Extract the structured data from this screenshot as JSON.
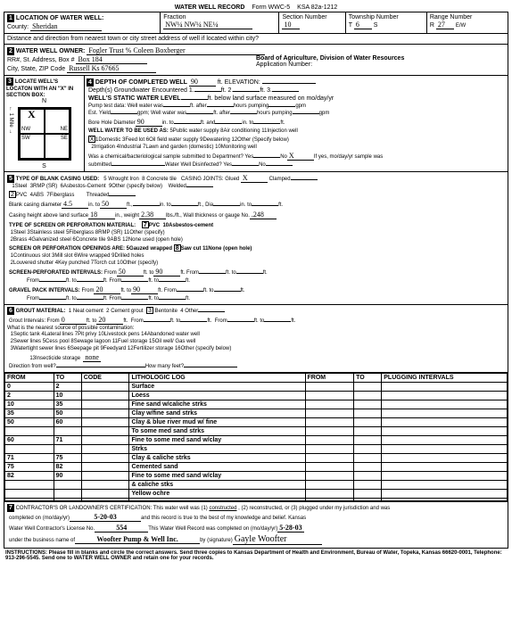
{
  "form": {
    "title": "WATER WELL RECORD",
    "form_no": "Form WWC-5",
    "ksa": "KSA 82a-1212"
  },
  "s1": {
    "label": "LOCATION OF WATER WELL:",
    "county_label": "County:",
    "county": "Sheridan",
    "fraction_label": "Fraction",
    "fraction": "NW¼   NW¼   NE¼",
    "section_label": "Section Number",
    "section": "10",
    "township_label": "Township Number",
    "township_t": "T",
    "township": "6",
    "township_s": "S",
    "range_label": "Range Number",
    "range_r": "R",
    "range": "27",
    "range_dir": "E/W",
    "distance": "Distance and direction from nearest town or city street address of well if located within city?"
  },
  "s2": {
    "label": "WATER WELL OWNER:",
    "owner": "Fogler Trust % Coleen Boxberger",
    "rr_label": "RR#, St. Address, Box #",
    "addr": "Box 184",
    "city_label": "City, State, ZIP Code",
    "city": "Russell Ks  67665",
    "board": "Board of Agriculture, Division of Water Resources",
    "appno": "Application Number:"
  },
  "s3": {
    "label": "LOCATE WELL'S LOCATON WITH AN \"X\" IN SECTION BOX:"
  },
  "s4": {
    "depth_label": "DEPTH OF COMPLETED WELL",
    "depth": "90",
    "elev_label": "ft. ELEVATION:",
    "gw_label": "Depth(s) Groundwater Encountered",
    "gw1": "1.",
    "gw2": "ft. 2.",
    "gw3": "ft. 3.",
    "static_label": "WELL'S STATIC WATER LEVEL",
    "static_suffix": "ft. below land surface measured on mo/day/yr",
    "pump_label": "Pump test data:",
    "well_water": "Well water was",
    "after1": "ft. after",
    "hours1": "hours pumping",
    "gpm1": "gpm",
    "yield_label": "Est. Yield",
    "gpm_lbl": "gpm;",
    "bore_label": "Bore Hole Diameter",
    "bore": "90",
    "in_lbl": "in. to",
    "ft_and": "ft. and",
    "in_to2": "in. to",
    "ft_end": "ft.",
    "use_label": "WELL WATER TO BE USED AS:",
    "u1": "Domestic",
    "u1v": "X",
    "u2": "Irrigation",
    "u3": "Feed lot",
    "u4": "Industrial",
    "u5": "Public water supply",
    "u6": "Oil field water supply",
    "u7": "Lawn and garden (domestic)",
    "u8": "Air conditioning",
    "u9": "Dewatering",
    "u10": "Monitoring well",
    "u11": "Injection well",
    "u12": "Other (Specify below)",
    "chem": "Was a chemical/bacteriological sample submitted to Department? Yes",
    "no_lbl": "No",
    "x1": "X",
    "ifyes": "If yes, mo/day/yr sample was",
    "submitted": "submitted",
    "disinf": "Water Well Disinfected? Yes",
    "no2": "No"
  },
  "s5": {
    "label": "TYPE OF BLANK CASING USED:",
    "c1": "Steel",
    "c2": "PVC",
    "c2v": "2",
    "c3": "RMP (SR)",
    "c4": "ABS",
    "c5": "Wrought Iron",
    "c6": "Asbestos-Cement",
    "c7": "Fiberglass",
    "c8": "Concrete tile",
    "c9": "Other (specify below)",
    "joints": "CASING JOINTS: Glued",
    "jx": "X",
    "clamped": "Clamped",
    "welded": "Welded",
    "threaded": "Threaded",
    "blank_dia": "Blank casing diameter",
    "bd1": "4.5",
    "bd2": "50",
    "bd3": "",
    "height": "Casing height above land surface",
    "h1": "18",
    "weight": "in., weight",
    "w1": "2.38",
    "wall": "lbs./ft., Wall thickness or gauge No.",
    "wn": ".248",
    "screen_label": "TYPE OF SCREEN OR PERFORATION MATERIAL:",
    "sc7": "PVC",
    "sc7v": "7",
    "s1": "Steel",
    "s2": "Brass",
    "s3": "Stainless steel",
    "s4": "Galvanized steel",
    "s5": "Fiberglass",
    "s6": "Concrete tile",
    "s8": "RMP (SR)",
    "s9": "ABS",
    "s10": "Asbestos-cement",
    "s11": "Other (specify)",
    "s12": "None used (open hole)",
    "open_label": "SCREEN OR PERFORATION OPENINGS ARE:",
    "o1": "Continuous slot",
    "o2": "Louvered shutter",
    "o3": "Mill slot",
    "o4": "Key punched",
    "o5": "Gauzed wrapped",
    "o6": "Wire wrapped",
    "o7": "Torch cut",
    "o8": "Saw cut",
    "o8v": "8",
    "o9": "Drilled holes",
    "o10": "Other (specify)",
    "o11": "None (open hole)",
    "perf": "SCREEN-PERFORATED INTERVALS:",
    "from": "From",
    "to": "ft. to",
    "ft": "ft.",
    "p1f": "50",
    "p1t": "90",
    "gravel": "GRAVEL PACK INTERVALS:",
    "g1f": "20",
    "g1t": "90"
  },
  "s6": {
    "label": "GROUT MATERIAL:",
    "g1": "Neat cement",
    "g2": "Cement grout",
    "g3": "Bentonite",
    "g3v": "3",
    "g4": "Other",
    "gi": "Grout Intervals:",
    "gif": "0",
    "git": "20",
    "contam": "What is the nearest source of possible contamination:",
    "c1": "Septic tank",
    "c2": "Sewer lines",
    "c3": "Watertight sewer lines",
    "c4": "Lateral lines",
    "c5": "Cess pool",
    "c6": "Seepage pit",
    "c7": "Pit privy",
    "c8": "Sewage lagoon",
    "c9": "Feedyard",
    "c10": "Livestock pens",
    "c11": "Fuel storage",
    "c12": "Fertilizer storage",
    "c13": "Insecticide storage",
    "c14": "Abandoned water well",
    "c15": "Oil well/ Gas well",
    "c16": "Other (specify below)",
    "c16v": "none",
    "dir": "Direction from well?",
    "many": "How many feet?"
  },
  "lith": {
    "h1": "FROM",
    "h2": "TO",
    "h3": "CODE",
    "h4": "LITHOLOGIC LOG",
    "h5": "FROM",
    "h6": "TO",
    "h7": "PLUGGING INTERVALS",
    "rows": [
      {
        "f": "0",
        "t": "2",
        "c": "",
        "l": "Surface"
      },
      {
        "f": "2",
        "t": "10",
        "c": "",
        "l": "Loess"
      },
      {
        "f": "10",
        "t": "35",
        "c": "",
        "l": "Fine sand w/caliche strks"
      },
      {
        "f": "35",
        "t": "50",
        "c": "",
        "l": "Clay w/fine sand strks"
      },
      {
        "f": "50",
        "t": "60",
        "c": "",
        "l": "Clay & blue river mud w/ fine"
      },
      {
        "f": "",
        "t": "",
        "c": "",
        "l": "To some med sand strks"
      },
      {
        "f": "60",
        "t": "71",
        "c": "",
        "l": "Fine to some med sand w/clay"
      },
      {
        "f": "",
        "t": "",
        "c": "",
        "l": "Strks"
      },
      {
        "f": "71",
        "t": "75",
        "c": "",
        "l": "Clay & caliche strks"
      },
      {
        "f": "75",
        "t": "82",
        "c": "",
        "l": "Cemented sand"
      },
      {
        "f": "82",
        "t": "90",
        "c": "",
        "l": "Fine to some med sand w/clay"
      },
      {
        "f": "",
        "t": "",
        "c": "",
        "l": "& caliche stks"
      },
      {
        "f": "",
        "t": "",
        "c": "",
        "l": "Yellow ochre"
      },
      {
        "f": "",
        "t": "",
        "c": "",
        "l": ""
      }
    ]
  },
  "s7": {
    "label": "CONTRACTOR'S OR LANDOWNER'S CERTIFICATION: This water well was (1)",
    "constructed": "constructed",
    "rest": ", (2) reconstructed, or (3) plugged under my jurisdiction and was",
    "completed": "completed on (mo/day/yr)",
    "date1": "5-20-03",
    "record": "and this record is true to the best of my knowledge and belief. Kansas",
    "lic": "Water Well Contractor's License No.",
    "licno": "554",
    "wwr": "This Water Well Record was completed on (mo/day/yr)",
    "date2": "5-28-03",
    "biz": "under the business name of",
    "bizname": "Woofter Pump & Well Inc.",
    "bysig": "by (signature)",
    "sig": "Gayle Woofter"
  },
  "instructions": "INSTRUCTIONS: Please fill in blanks and circle the correct answers. Send three copies to Kansas Department of Health and Environment, Bureau of Water, Topeka, Kansas 66620-0001, Telephone: 913-296-5545. Send one to WATER WELL OWNER and retain one for your records."
}
